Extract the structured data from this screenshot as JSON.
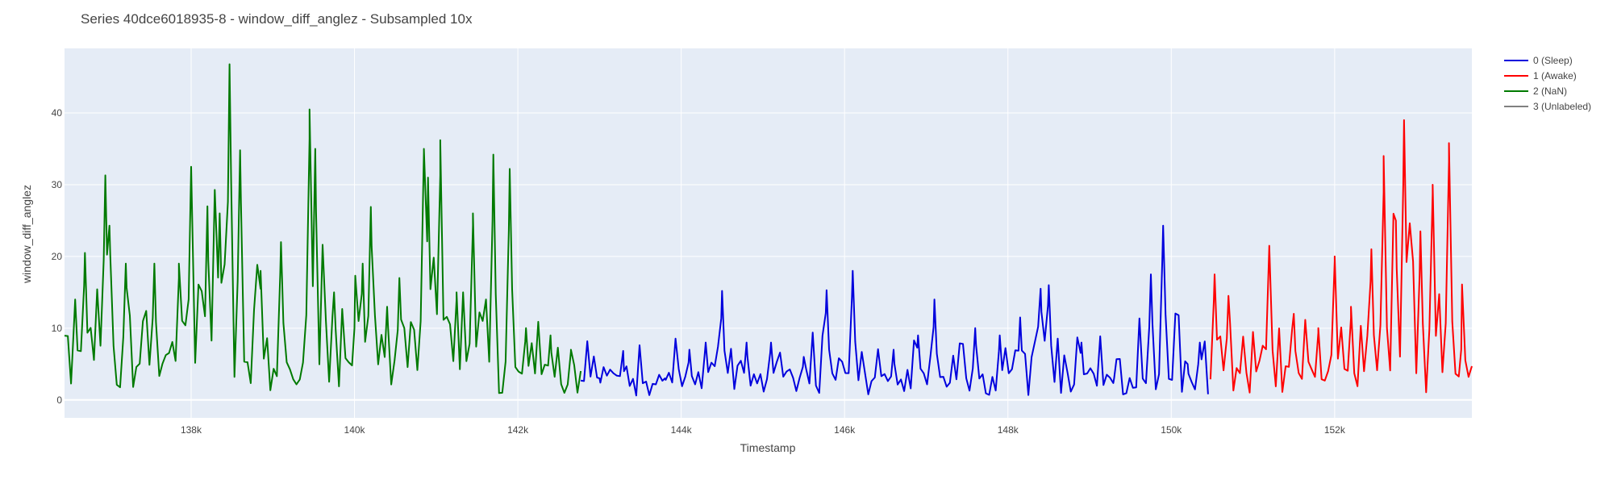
{
  "colors": {
    "plot_bg": "#e5ecf6",
    "grid": "#ffffff",
    "sleep": "#0000dd",
    "awake": "#ff0000",
    "nan": "#007a00",
    "unlabeled": "#808080"
  },
  "chart_data": {
    "type": "line",
    "title": "Series 40dce6018935-8 - window_diff_anglez - Subsampled 10x",
    "xlabel": "Timestamp",
    "ylabel": "window_diff_anglez",
    "xlim": [
      136450,
      153680
    ],
    "ylim": [
      -2.5,
      49
    ],
    "grid": true,
    "legend_position": "top-right, outside plot",
    "x_tick_values": [
      138000,
      140000,
      142000,
      144000,
      146000,
      148000,
      150000,
      152000
    ],
    "x_tick_labels": [
      "138k",
      "140k",
      "142k",
      "144k",
      "146k",
      "148k",
      "150k",
      "152k"
    ],
    "y_tick_values": [
      0,
      10,
      20,
      30,
      40
    ],
    "y_tick_labels": [
      "0",
      "10",
      "20",
      "30",
      "40"
    ],
    "x_step": 10,
    "series": [
      {
        "name": "0 (Sleep)",
        "color": "#0000dd",
        "x_range": [
          142770,
          150480
        ],
        "peaks": [
          [
            143000,
            3
          ],
          [
            143300,
            4
          ],
          [
            143800,
            3
          ],
          [
            144100,
            7
          ],
          [
            144300,
            8
          ],
          [
            144500,
            15.2
          ],
          [
            144800,
            8
          ],
          [
            145100,
            8
          ],
          [
            145500,
            6
          ],
          [
            145780,
            15.3
          ],
          [
            146100,
            18
          ],
          [
            146600,
            7
          ],
          [
            146900,
            9
          ],
          [
            147100,
            14
          ],
          [
            147600,
            10
          ],
          [
            147900,
            9
          ],
          [
            148150,
            11.5
          ],
          [
            148400,
            15.5
          ],
          [
            148500,
            16
          ],
          [
            148900,
            8
          ],
          [
            149300,
            3
          ],
          [
            149750,
            17.5
          ],
          [
            149900,
            24.3
          ],
          [
            150200,
            5
          ],
          [
            150350,
            8
          ]
        ],
        "baseline": 2,
        "max": 24.3
      },
      {
        "name": "1 (Awake)",
        "color": "#ff0000",
        "x_range": [
          150480,
          153680
        ],
        "peaks": [
          [
            150530,
            17.5
          ],
          [
            150700,
            14.5
          ],
          [
            151200,
            21.5
          ],
          [
            151500,
            12
          ],
          [
            151800,
            10
          ],
          [
            152000,
            20
          ],
          [
            152200,
            13
          ],
          [
            152450,
            21
          ],
          [
            152600,
            34
          ],
          [
            152750,
            25
          ],
          [
            152850,
            39
          ],
          [
            153050,
            23.5
          ],
          [
            153200,
            30
          ],
          [
            153400,
            35.8
          ],
          [
            153550,
            7
          ]
        ],
        "baseline": 3,
        "max": 39
      },
      {
        "name": "2 (NaN)",
        "color": "#007a00",
        "x_range": [
          136450,
          142770
        ],
        "peaks": [
          [
            136580,
            14
          ],
          [
            136700,
            20.5
          ],
          [
            136950,
            31.3
          ],
          [
            137000,
            24.3
          ],
          [
            137200,
            19
          ],
          [
            137550,
            19
          ],
          [
            137850,
            19
          ],
          [
            138000,
            32.5
          ],
          [
            138200,
            27
          ],
          [
            138350,
            26
          ],
          [
            138470,
            46.8
          ],
          [
            138600,
            34.8
          ],
          [
            138850,
            18
          ],
          [
            139100,
            22
          ],
          [
            139450,
            40.5
          ],
          [
            139520,
            35
          ],
          [
            139750,
            15
          ],
          [
            140000,
            10
          ],
          [
            140100,
            19
          ],
          [
            140200,
            26.9
          ],
          [
            140400,
            13
          ],
          [
            140550,
            17
          ],
          [
            140850,
            35
          ],
          [
            140900,
            31
          ],
          [
            141050,
            36.2
          ],
          [
            141250,
            15
          ],
          [
            141450,
            26
          ],
          [
            141700,
            34.2
          ],
          [
            141900,
            32.2
          ],
          [
            142100,
            10
          ],
          [
            142400,
            9
          ],
          [
            142650,
            7
          ]
        ],
        "baseline": 3,
        "max": 46.8
      },
      {
        "name": "3 (Unlabeled)",
        "color": "#808080",
        "x_range": [],
        "peaks": [],
        "baseline": 0,
        "max": 0
      }
    ]
  }
}
